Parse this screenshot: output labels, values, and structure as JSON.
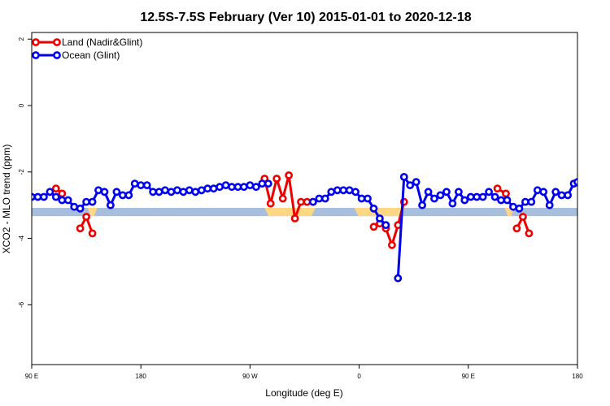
{
  "chart_data": {
    "type": "line",
    "title": "12.5S-7.5S February (Ver 10)   2015-01-01 to 2020-12-18",
    "xlabel": "Longitude (deg E)",
    "ylabel": "XCO2 - MLO trend (ppm)",
    "xlim": [
      90,
      540
    ],
    "ylim": [
      -7.8,
      2.2
    ],
    "x_ticks": [
      {
        "value": 90,
        "label": "90 E"
      },
      {
        "value": 180,
        "label": "180"
      },
      {
        "value": 270,
        "label": "90 W"
      },
      {
        "value": 360,
        "label": "0"
      },
      {
        "value": 450,
        "label": "90 E"
      },
      {
        "value": 540,
        "label": "180"
      }
    ],
    "y_ticks": [
      {
        "value": 2,
        "label": "2"
      },
      {
        "value": 0,
        "label": "0"
      },
      {
        "value": -2,
        "label": "-2"
      },
      {
        "value": -4,
        "label": "-4"
      },
      {
        "value": -6,
        "label": "-6"
      }
    ],
    "grid": false,
    "legend_position": "top-left",
    "land_mask": {
      "y_top": -3.08,
      "y_bottom": -3.33,
      "ocean_color": "#a7bedc",
      "land_color": "#fdd783",
      "land_ranges": [
        [
          282,
          324
        ],
        [
          356,
          397
        ],
        [
          136,
          144
        ],
        [
          480,
          488
        ]
      ]
    },
    "series": [
      {
        "name": "Land (Nadir&Glint)",
        "color": "#ee0000",
        "segments": [
          [
            [
              110,
              -2.5
            ],
            [
              115,
              -2.65
            ]
          ],
          [
            [
              130,
              -3.7
            ],
            [
              135,
              -3.35
            ],
            [
              140,
              -3.85
            ]
          ],
          [
            [
              282,
              -2.2
            ],
            [
              287,
              -2.95
            ],
            [
              292,
              -2.2
            ],
            [
              297,
              -2.8
            ],
            [
              302,
              -2.1
            ],
            [
              307,
              -3.4
            ],
            [
              312,
              -2.9
            ],
            [
              317,
              -2.9
            ],
            [
              322,
              -2.9
            ]
          ],
          [
            [
              372,
              -3.65
            ],
            [
              377,
              -3.55
            ],
            [
              382,
              -3.7
            ],
            [
              387,
              -4.2
            ],
            [
              392,
              -3.6
            ],
            [
              397,
              -2.9
            ]
          ],
          [
            [
              474,
              -2.5
            ],
            [
              481,
              -2.65
            ]
          ],
          [
            [
              490,
              -3.7
            ],
            [
              495,
              -3.35
            ],
            [
              500,
              -3.85
            ]
          ]
        ]
      },
      {
        "name": "Ocean (Glint)",
        "color": "#0000ee",
        "segments": [
          [
            [
              90,
              -2.75
            ],
            [
              95,
              -2.75
            ],
            [
              100,
              -2.75
            ],
            [
              105,
              -2.6
            ],
            [
              110,
              -2.75
            ],
            [
              115,
              -2.85
            ],
            [
              120,
              -2.85
            ],
            [
              125,
              -3.05
            ],
            [
              130,
              -3.1
            ],
            [
              135,
              -2.9
            ],
            [
              140,
              -2.9
            ],
            [
              145,
              -2.55
            ],
            [
              150,
              -2.6
            ],
            [
              155,
              -3.0
            ],
            [
              160,
              -2.6
            ],
            [
              165,
              -2.7
            ],
            [
              170,
              -2.7
            ],
            [
              175,
              -2.35
            ],
            [
              180,
              -2.4
            ],
            [
              185,
              -2.4
            ],
            [
              190,
              -2.6
            ],
            [
              195,
              -2.6
            ],
            [
              200,
              -2.55
            ],
            [
              205,
              -2.6
            ],
            [
              210,
              -2.55
            ],
            [
              215,
              -2.6
            ],
            [
              220,
              -2.55
            ],
            [
              225,
              -2.6
            ],
            [
              230,
              -2.55
            ],
            [
              235,
              -2.5
            ],
            [
              240,
              -2.5
            ],
            [
              245,
              -2.45
            ],
            [
              250,
              -2.4
            ],
            [
              255,
              -2.45
            ],
            [
              260,
              -2.45
            ],
            [
              265,
              -2.45
            ],
            [
              270,
              -2.4
            ],
            [
              275,
              -2.45
            ],
            [
              280,
              -2.35
            ],
            [
              285,
              -2.35
            ]
          ],
          [
            [
              322,
              -2.9
            ],
            [
              327,
              -2.8
            ],
            [
              332,
              -2.8
            ],
            [
              337,
              -2.6
            ],
            [
              342,
              -2.55
            ],
            [
              347,
              -2.55
            ],
            [
              352,
              -2.55
            ],
            [
              357,
              -2.6
            ],
            [
              362,
              -2.8
            ],
            [
              367,
              -2.8
            ],
            [
              372,
              -3.1
            ],
            [
              377,
              -3.4
            ],
            [
              382,
              -3.6
            ]
          ],
          [
            [
              392,
              -5.2
            ],
            [
              397,
              -2.15
            ],
            [
              402,
              -2.4
            ],
            [
              407,
              -2.3
            ],
            [
              412,
              -3.0
            ],
            [
              417,
              -2.6
            ],
            [
              422,
              -2.8
            ],
            [
              427,
              -2.7
            ],
            [
              432,
              -2.6
            ],
            [
              437,
              -2.95
            ],
            [
              442,
              -2.6
            ],
            [
              447,
              -2.85
            ],
            [
              452,
              -2.75
            ],
            [
              457,
              -2.75
            ],
            [
              462,
              -2.75
            ],
            [
              467,
              -2.6
            ],
            [
              472,
              -2.75
            ],
            [
              477,
              -2.85
            ],
            [
              482,
              -2.85
            ],
            [
              487,
              -3.05
            ],
            [
              492,
              -3.1
            ],
            [
              497,
              -2.9
            ],
            [
              502,
              -2.9
            ],
            [
              507,
              -2.55
            ],
            [
              512,
              -2.6
            ],
            [
              517,
              -3.0
            ],
            [
              522,
              -2.6
            ],
            [
              527,
              -2.7
            ],
            [
              532,
              -2.7
            ],
            [
              537,
              -2.35
            ],
            [
              540,
              -2.3
            ]
          ]
        ]
      }
    ]
  }
}
